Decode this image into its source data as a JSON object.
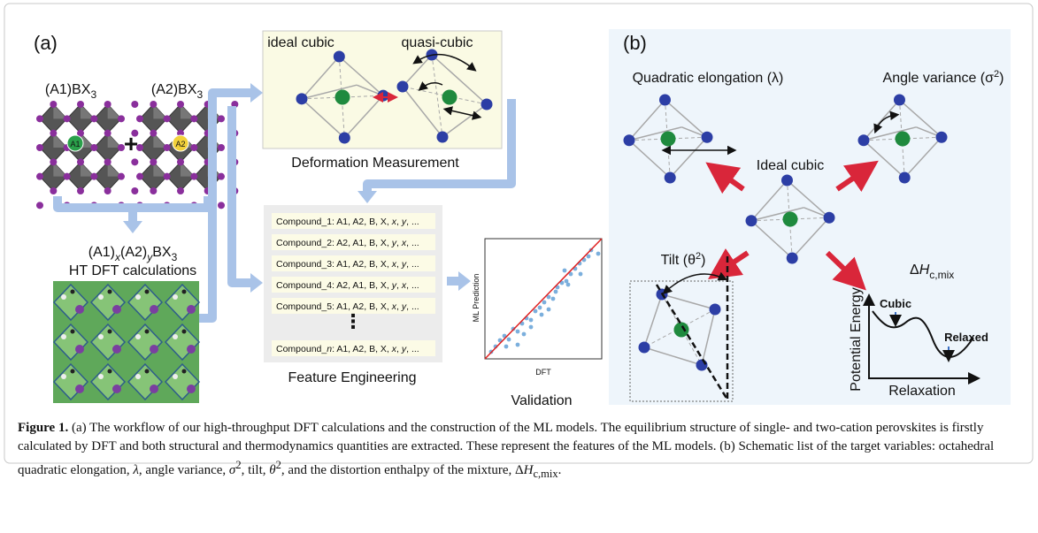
{
  "panel_a": {
    "label": "(a)",
    "formula_a1": [
      "(A1)BX",
      "3"
    ],
    "formula_a2": [
      "(A2)BX",
      "3"
    ],
    "site_a1": "A1",
    "site_a2": "A2",
    "plus": "+",
    "mixed_formula": [
      "(A1)",
      "x",
      "(A2)",
      "y",
      "BX",
      "3"
    ],
    "calc_label": "HT DFT calculations",
    "deformation": {
      "ideal": "ideal cubic",
      "quasi": "quasi-cubic",
      "title": "Deformation Measurement"
    },
    "features": {
      "rows": [
        [
          "Compound_1: A1, A2, B, X, ",
          "x",
          ", ",
          "y",
          ", ..."
        ],
        [
          "Compound_2: A2, A1, B, X, ",
          "y",
          ", ",
          "x",
          ", ..."
        ],
        [
          "Compound_3: A1, A2, B, X, ",
          "x",
          ", ",
          "y",
          ", ..."
        ],
        [
          "Compound_4: A2, A1, B, X, ",
          "y",
          ", ",
          "x",
          ", ..."
        ],
        [
          "Compound_5: A1, A2, B, X, ",
          "x",
          ", ",
          "y",
          ", ..."
        ]
      ],
      "ellipsis": "⋮",
      "last": [
        "Compound_",
        "n",
        ": A1, A2, B, X, ",
        "x",
        ", ",
        "y",
        ", ..."
      ],
      "title": "Feature Engineering"
    },
    "validation": {
      "y_label": "ML Prediction",
      "x_label": "DFT",
      "title": "Validation"
    }
  },
  "panel_b": {
    "label": "(b)",
    "elongation": "Quadratic elongation (λ)",
    "angle_variance": [
      "Angle variance (σ",
      "2",
      ")"
    ],
    "ideal": "Ideal cubic",
    "tilt": [
      "Tilt (θ",
      "2",
      ")"
    ],
    "enthalpy": [
      "Δ",
      "H",
      "c,mix"
    ],
    "energy": {
      "y_label": "Potential Energy",
      "x_label": "Relaxation",
      "cubic": "Cubic",
      "relaxed": "Relaxed"
    }
  },
  "caption": {
    "label": "Figure 1.",
    "segments": [
      " (a) The workflow of our high-throughput DFT calculations and the construction of the ML models. The equilibrium structure of single- and two-cation perovskites is firstly calculated by DFT and both structural and thermodynamics quantities are extracted. These represent the features of the ML models. (b) Schematic list of the target variables: octahedral quadratic elongation, ",
      "λ",
      ", angle variance, ",
      "σ",
      "2",
      ", tilt, ",
      "θ",
      "2",
      ", and the distortion enthalpy of the mixture, ",
      "Δ",
      "H",
      "c,mix",
      "."
    ]
  }
}
